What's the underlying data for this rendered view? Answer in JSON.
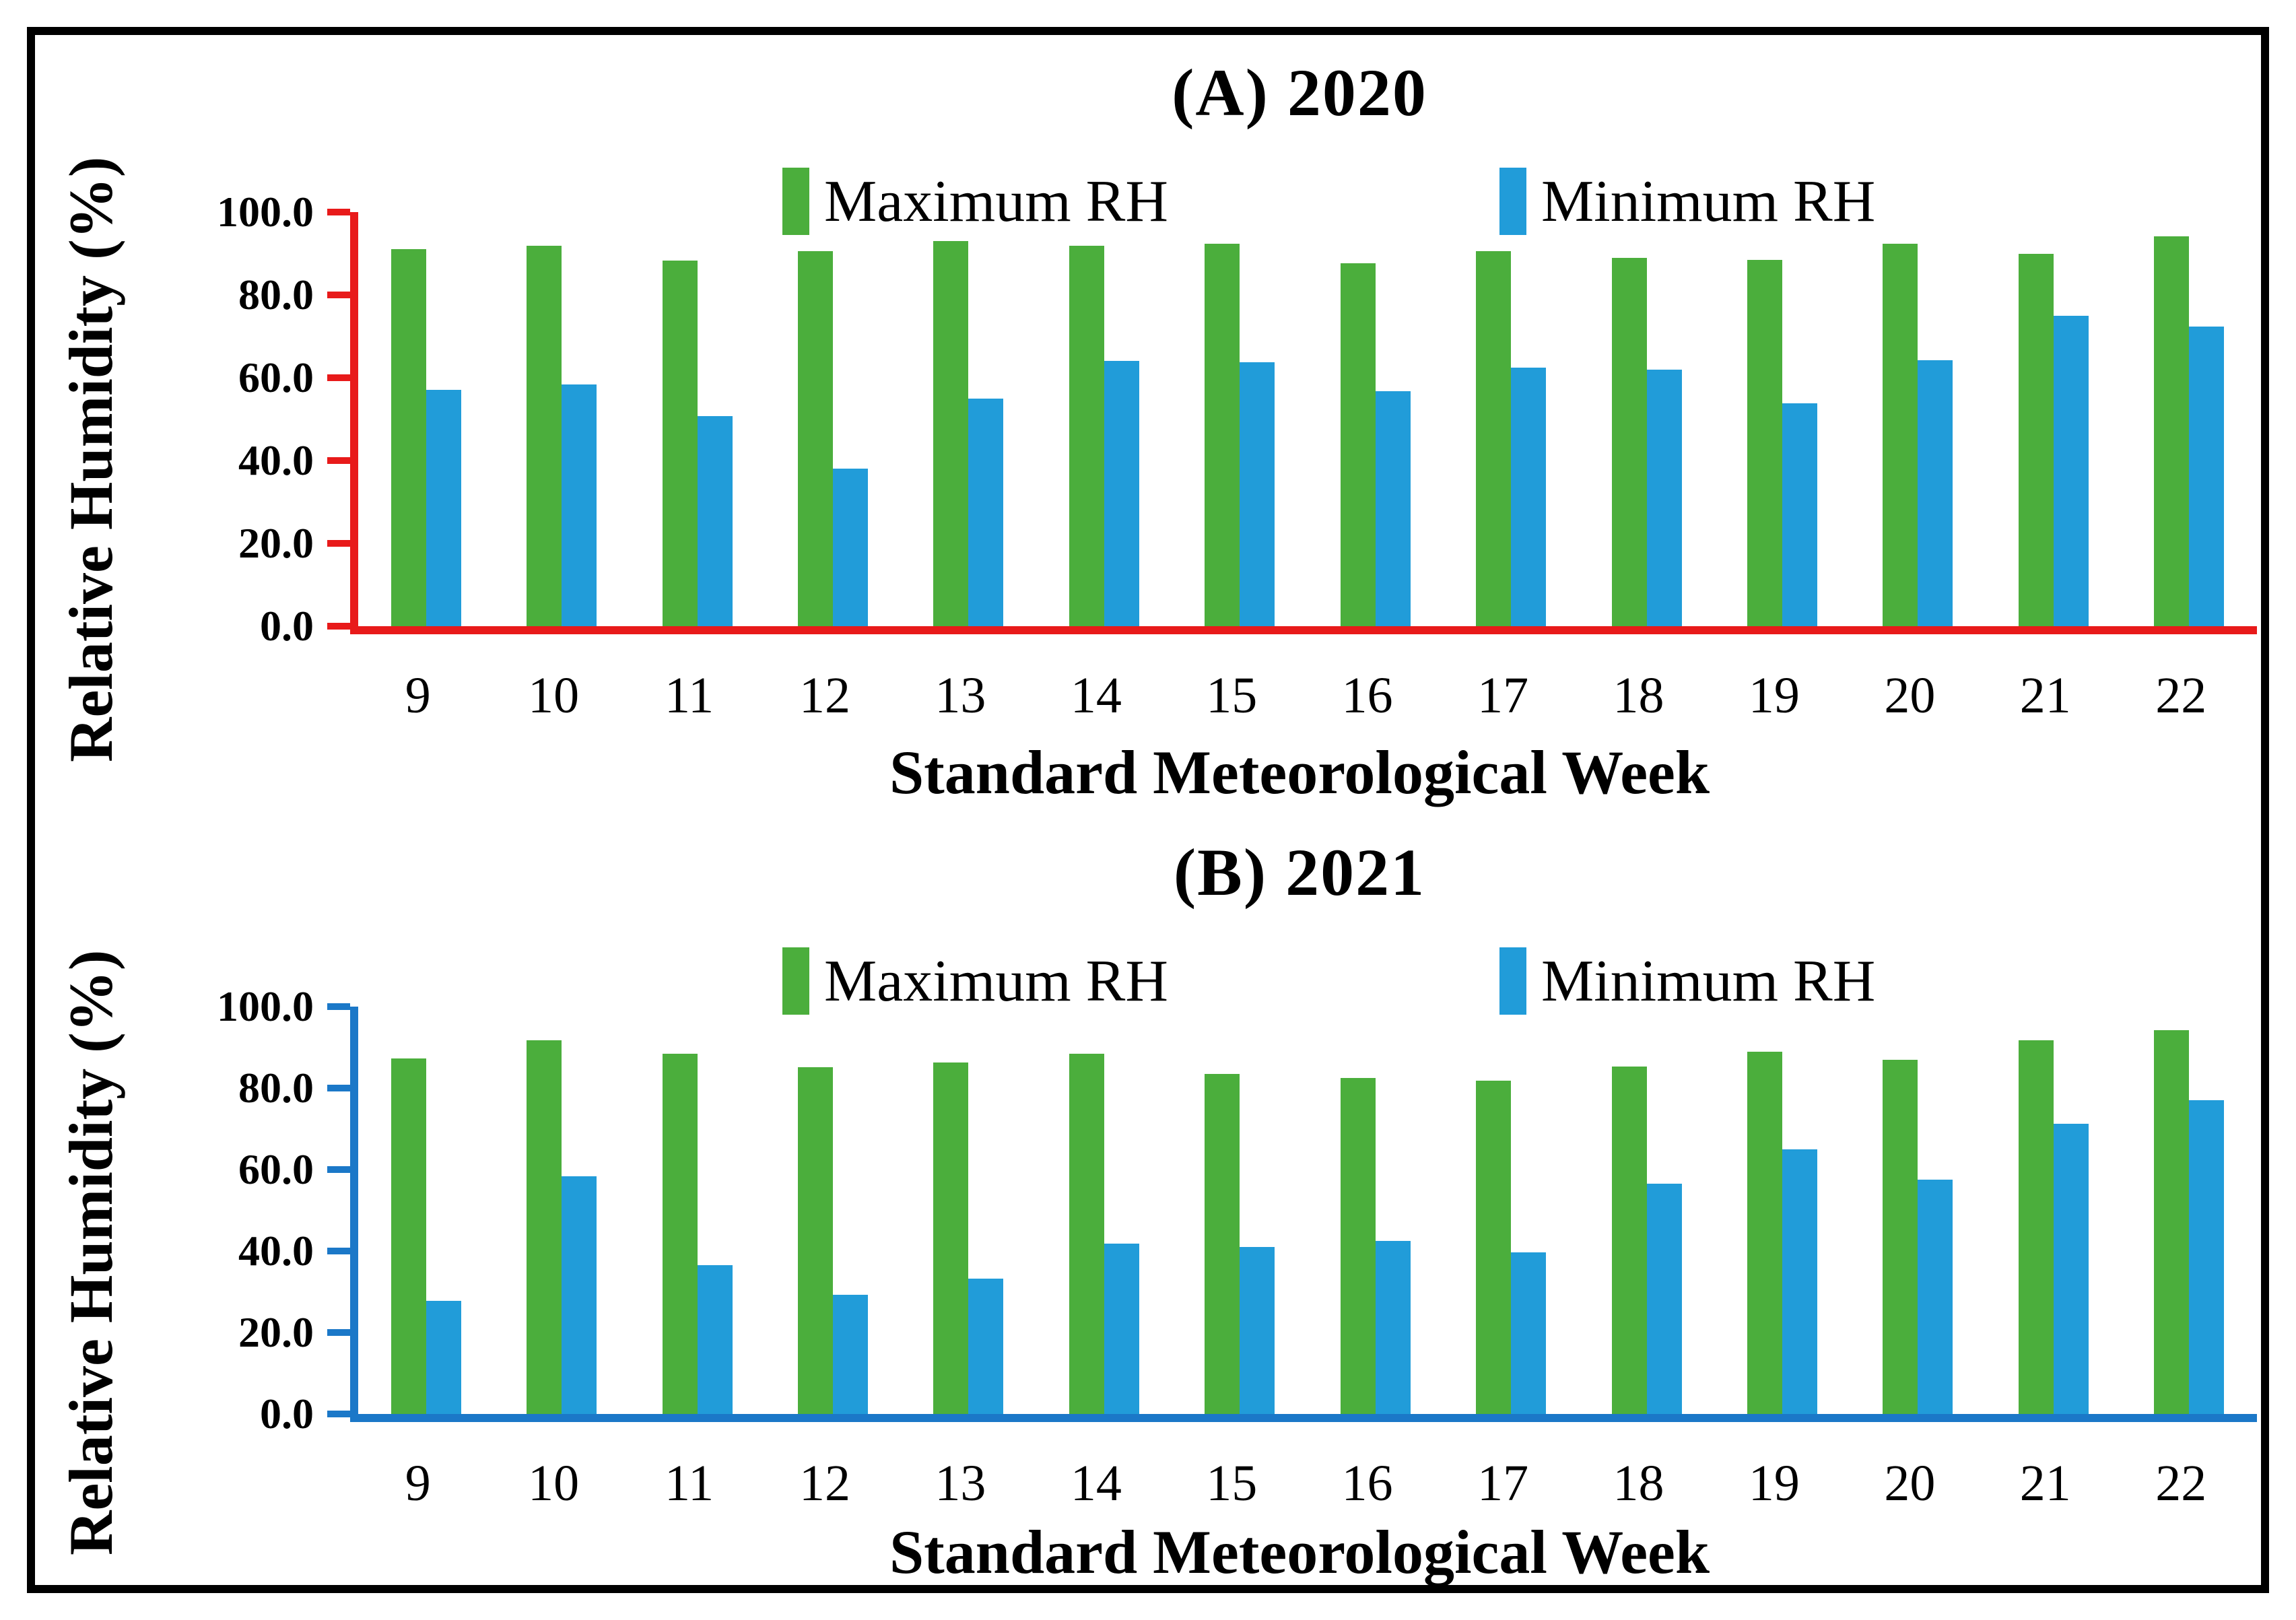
{
  "figure": {
    "background": "#ffffff",
    "frame_color": "#000000",
    "bar_green": "#4BAE3C",
    "bar_blue": "#219CD9"
  },
  "chart_data": [
    {
      "type": "bar",
      "title": "(A) 2020",
      "xlabel": "Standard Meteorological Week",
      "ylabel": "Relative Humidity (%)",
      "ylim": [
        0,
        100
      ],
      "ytick_step": 20,
      "ytick_labels": [
        "0.0",
        "20.0",
        "40.0",
        "60.0",
        "80.0",
        "100.0"
      ],
      "axis_color": "#E81A1A",
      "legend_position": "top",
      "grid": false,
      "categories": [
        "9",
        "10",
        "11",
        "12",
        "13",
        "14",
        "15",
        "16",
        "17",
        "18",
        "19",
        "20",
        "21",
        "22"
      ],
      "series": [
        {
          "name": "Maximum RH",
          "color": "#4BAE3C",
          "values": [
            91.0,
            91.8,
            88.3,
            90.6,
            93.0,
            91.8,
            92.3,
            87.7,
            90.6,
            88.9,
            88.4,
            92.3,
            90.0,
            94.2
          ]
        },
        {
          "name": "Minimum RH",
          "color": "#219CD9",
          "values": [
            57.0,
            58.3,
            50.7,
            38.0,
            55.0,
            64.0,
            63.7,
            56.8,
            62.4,
            61.9,
            53.8,
            64.3,
            75.0,
            72.4
          ]
        }
      ]
    },
    {
      "type": "bar",
      "title": "(B) 2021",
      "xlabel": "Standard Meteorological Week",
      "ylabel": "Relative Humidity (%)",
      "ylim": [
        0,
        100
      ],
      "ytick_step": 20,
      "ytick_labels": [
        "0.0",
        "20.0",
        "40.0",
        "60.0",
        "80.0",
        "100.0"
      ],
      "axis_color": "#1B78C8",
      "legend_position": "top",
      "grid": false,
      "categories": [
        "9",
        "10",
        "11",
        "12",
        "13",
        "14",
        "15",
        "16",
        "17",
        "18",
        "19",
        "20",
        "21",
        "22"
      ],
      "series": [
        {
          "name": "Maximum RH",
          "color": "#4BAE3C",
          "values": [
            87.2,
            91.8,
            88.4,
            85.2,
            86.3,
            88.4,
            83.5,
            82.5,
            81.9,
            85.3,
            89.0,
            87.0,
            91.8,
            94.2
          ]
        },
        {
          "name": "Minimum RH",
          "color": "#219CD9",
          "values": [
            27.8,
            58.3,
            36.6,
            29.3,
            33.2,
            41.8,
            41.0,
            42.4,
            39.7,
            56.6,
            65.0,
            57.6,
            71.2,
            77.1
          ]
        }
      ]
    }
  ]
}
